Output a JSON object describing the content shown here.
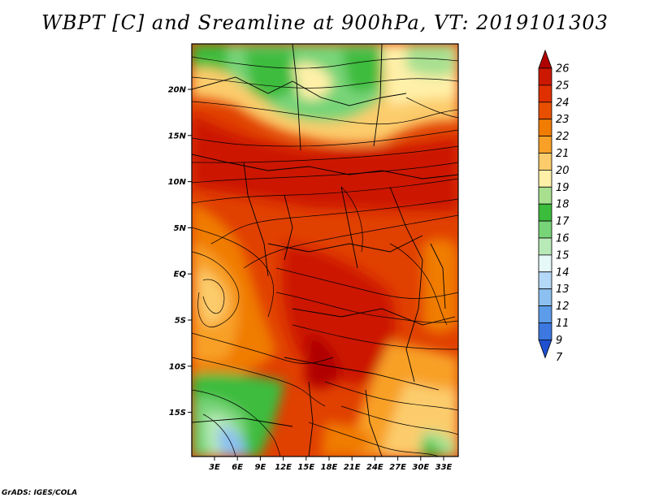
{
  "title": "WBPT [C] and Sreamline at 900hPa, VT: 2019101303",
  "credit": "GrADS: IGES/COLA",
  "map": {
    "lat_labels": [
      "20N",
      "15N",
      "10N",
      "5N",
      "EQ",
      "5S",
      "10S",
      "15S"
    ],
    "lon_labels": [
      "3E",
      "6E",
      "9E",
      "12E",
      "15E",
      "18E",
      "21E",
      "24E",
      "27E",
      "30E",
      "33E"
    ]
  },
  "colorbar": {
    "labels": [
      "26",
      "25",
      "24",
      "23",
      "22",
      "21",
      "20",
      "19",
      "18",
      "17",
      "16",
      "15",
      "14",
      "13",
      "12",
      "11",
      "9",
      "7"
    ],
    "colors": [
      "#b00000",
      "#cc1800",
      "#e03000",
      "#e85000",
      "#f07c00",
      "#f8a028",
      "#fccc6c",
      "#fff0a8",
      "#a8e090",
      "#3cbc3c",
      "#78d478",
      "#b8eab8",
      "#e6f8f8",
      "#b4d8f8",
      "#8cc0f0",
      "#5c9ce8",
      "#3c78e0",
      "#1e50d0"
    ]
  }
}
